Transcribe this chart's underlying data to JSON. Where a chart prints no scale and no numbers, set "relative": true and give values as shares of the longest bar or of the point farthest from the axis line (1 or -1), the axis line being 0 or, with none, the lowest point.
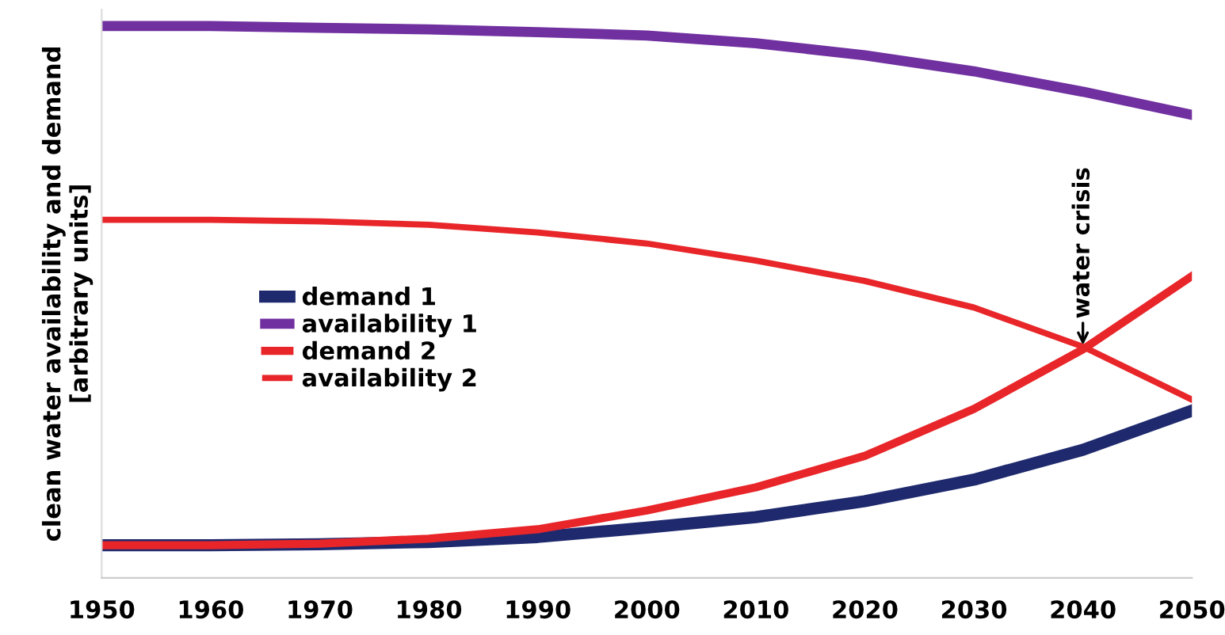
{
  "chart_data": {
    "type": "line",
    "relative": true,
    "ylabel": "clean water availability and demand\n[arbitrary units]",
    "x": [
      1950,
      1960,
      1970,
      1980,
      1990,
      2000,
      2010,
      2020,
      2030,
      2040,
      2050
    ],
    "xlim": [
      1950,
      2050
    ],
    "xticks": [
      1950,
      1960,
      1970,
      1980,
      1990,
      2000,
      2010,
      2020,
      2030,
      2040,
      2050
    ],
    "series": [
      {
        "name": "demand 1",
        "color": "#1f2a6e",
        "values": [
          0.059,
          0.059,
          0.061,
          0.065,
          0.074,
          0.091,
          0.11,
          0.139,
          0.178,
          0.232,
          0.303
        ]
      },
      {
        "name": "availability 1",
        "color": "#7030a0",
        "values": [
          1.0,
          1.0,
          0.997,
          0.994,
          0.989,
          0.983,
          0.969,
          0.947,
          0.918,
          0.881,
          0.839
        ]
      },
      {
        "name": "demand 2",
        "color": "#e8262a",
        "values": [
          0.059,
          0.059,
          0.062,
          0.071,
          0.088,
          0.122,
          0.164,
          0.221,
          0.306,
          0.414,
          0.547
        ]
      },
      {
        "name": "availability 2",
        "color": "#e8262a",
        "values": [
          0.649,
          0.649,
          0.646,
          0.64,
          0.626,
          0.606,
          0.575,
          0.538,
          0.49,
          0.419,
          0.323
        ]
      }
    ],
    "annotations": [
      {
        "text": "water crisis",
        "x": 2040,
        "y": 0.414
      }
    ],
    "legend": "left",
    "grid": false,
    "marker": "none",
    "line_style": "solid"
  }
}
